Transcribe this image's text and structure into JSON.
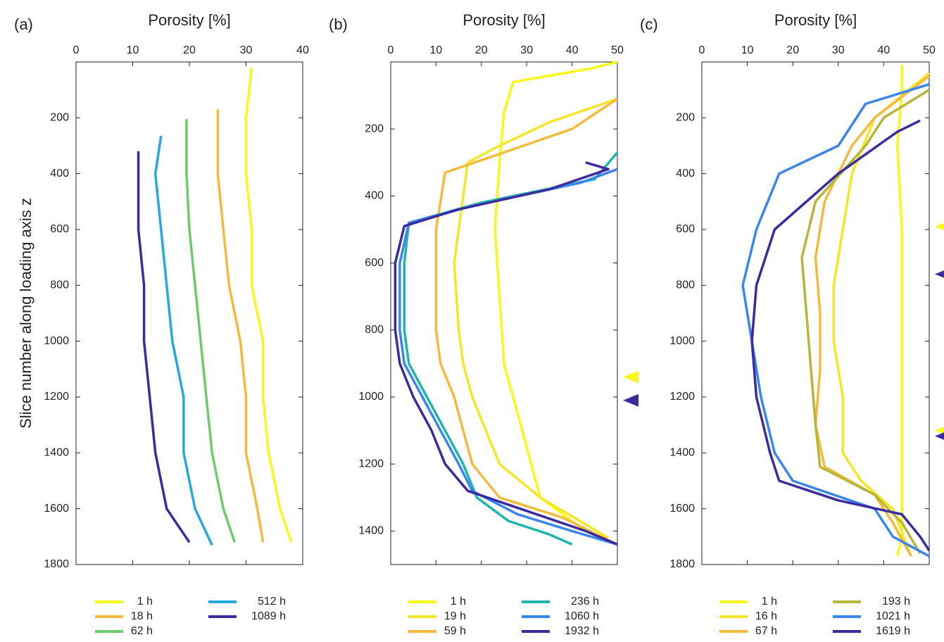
{
  "chart_data": [
    {
      "type": "line",
      "label": "(a)",
      "x_label": "Porosity [%]",
      "y_label": "Slice number along loading axis z",
      "xlim": [
        0,
        40
      ],
      "xticks": [
        0,
        10,
        20,
        30,
        40
      ],
      "ylim": [
        0,
        1800
      ],
      "yticks": [
        200,
        400,
        600,
        800,
        1000,
        1200,
        1400,
        1600,
        1800
      ],
      "y_inverted": true,
      "series": [
        {
          "name": "1 h",
          "color": "#f8f81c",
          "z": [
            20,
            200,
            400,
            600,
            800,
            1000,
            1200,
            1400,
            1600,
            1720
          ],
          "values": [
            31,
            30,
            30,
            31,
            31,
            33,
            33,
            34,
            36,
            38
          ]
        },
        {
          "name": "18 h",
          "color": "#f4ba3c",
          "z": [
            170,
            400,
            600,
            800,
            1000,
            1200,
            1400,
            1600,
            1720
          ],
          "values": [
            25,
            25,
            26,
            27,
            29,
            30,
            30,
            32,
            33
          ]
        },
        {
          "name": "62 h",
          "color": "#6ccb6b",
          "z": [
            205,
            400,
            600,
            800,
            1000,
            1200,
            1400,
            1600,
            1720
          ],
          "values": [
            19.5,
            19.5,
            20,
            21,
            22,
            23,
            24,
            26,
            28
          ]
        },
        {
          "name": "512 h",
          "color": "#27a8dc",
          "z": [
            265,
            400,
            600,
            800,
            1000,
            1200,
            1400,
            1600,
            1730
          ],
          "values": [
            15,
            14,
            15,
            16,
            17,
            19,
            19,
            21,
            24
          ]
        },
        {
          "name": "1089 h",
          "color": "#3b2b9c",
          "z": [
            320,
            400,
            600,
            800,
            1000,
            1200,
            1400,
            1600,
            1720
          ],
          "values": [
            11,
            11,
            11,
            12,
            12,
            13,
            14,
            16,
            20
          ]
        }
      ],
      "arrows": []
    },
    {
      "type": "line",
      "label": "(b)",
      "x_label": "Porosity [%]",
      "xlim": [
        0,
        50
      ],
      "xticks": [
        0,
        10,
        20,
        30,
        40,
        50
      ],
      "ylim": [
        0,
        1500
      ],
      "yticks": [
        200,
        400,
        600,
        800,
        1000,
        1200,
        1400
      ],
      "y_inverted": true,
      "series": [
        {
          "name": "1 h",
          "color": "#f8f81c",
          "z": [
            0,
            20,
            60,
            150,
            300,
            500,
            700,
            900,
            1000,
            1100,
            1200,
            1300,
            1400,
            1440
          ],
          "values": [
            50,
            44,
            27,
            25,
            24,
            23,
            24,
            25,
            27,
            29,
            31,
            33,
            43,
            50
          ]
        },
        {
          "name": "19 h",
          "color": "#f5e62a",
          "z": [
            110,
            180,
            250,
            300,
            400,
            600,
            800,
            900,
            1000,
            1100,
            1200,
            1300,
            1420
          ],
          "values": [
            50,
            35,
            24,
            17,
            16,
            14,
            15,
            16,
            18,
            21,
            24,
            33,
            48
          ]
        },
        {
          "name": "59 h",
          "color": "#f4ba3c",
          "z": [
            110,
            200,
            270,
            330,
            500,
            700,
            800,
            900,
            1000,
            1100,
            1200,
            1300,
            1360,
            1440
          ],
          "values": [
            50,
            40,
            25,
            12,
            10,
            10,
            10,
            11,
            14,
            16,
            18,
            24,
            38,
            50
          ]
        },
        {
          "name": "236 h",
          "color": "#20b5ac",
          "z": [
            270,
            350,
            420,
            480,
            600,
            800,
            900,
            1000,
            1100,
            1200,
            1300,
            1370,
            1410,
            1440
          ],
          "values": [
            50,
            45,
            20,
            4,
            3,
            3,
            4,
            8,
            12,
            16,
            19,
            26,
            35,
            40
          ]
        },
        {
          "name": "1060 h",
          "color": "#3a86ee",
          "z": [
            320,
            360,
            430,
            480,
            600,
            800,
            900,
            1000,
            1100,
            1200,
            1280,
            1350,
            1400,
            1440
          ],
          "values": [
            50,
            42,
            18,
            4,
            2,
            2,
            3,
            7,
            11,
            15,
            18,
            28,
            40,
            50
          ]
        },
        {
          "name": "1932 h",
          "color": "#3b2b9c",
          "z": [
            300,
            320,
            380,
            440,
            490,
            600,
            800,
            900,
            1000,
            1100,
            1200,
            1280,
            1340,
            1400,
            1440
          ],
          "values": [
            43,
            48,
            35,
            15,
            3,
            1,
            1,
            2,
            5,
            9,
            12,
            17,
            30,
            43,
            50
          ]
        }
      ],
      "arrows": [
        {
          "value": 940,
          "color": "#f8f81c"
        },
        {
          "value": 1010,
          "color": "#3b2b9c"
        }
      ]
    },
    {
      "type": "line",
      "label": "(c)",
      "x_label": "Porosity [%]",
      "xlim": [
        0,
        50
      ],
      "xticks": [
        0,
        10,
        20,
        30,
        40,
        50
      ],
      "ylim": [
        0,
        1800
      ],
      "yticks": [
        200,
        400,
        600,
        800,
        1000,
        1200,
        1400,
        1600,
        1800
      ],
      "y_inverted": true,
      "series": [
        {
          "name": "1 h",
          "color": "#f8f81c",
          "z": [
            10,
            100,
            300,
            600,
            900,
            1200,
            1500,
            1700,
            1770
          ],
          "values": [
            44,
            44,
            43,
            44,
            44,
            44,
            44,
            44,
            43
          ]
        },
        {
          "name": "16 h",
          "color": "#f5e62a",
          "z": [
            40,
            200,
            400,
            600,
            800,
            1000,
            1200,
            1400,
            1500,
            1600,
            1770
          ],
          "values": [
            50,
            38,
            33,
            31,
            29,
            29,
            31,
            31,
            35,
            42,
            46
          ]
        },
        {
          "name": "67 h",
          "color": "#f4ba3c",
          "z": [
            50,
            200,
            300,
            500,
            700,
            900,
            1100,
            1300,
            1450,
            1550,
            1650,
            1770
          ],
          "values": [
            50,
            38,
            33,
            27,
            25,
            26,
            26,
            25,
            27,
            38,
            42,
            46
          ]
        },
        {
          "name": "193 h",
          "color": "#b8b63a",
          "z": [
            100,
            200,
            300,
            500,
            700,
            900,
            1100,
            1300,
            1450,
            1550,
            1650,
            1760
          ],
          "values": [
            50,
            40,
            36,
            25,
            22,
            23,
            24,
            25,
            26,
            38,
            44,
            48
          ]
        },
        {
          "name": "1021 h",
          "color": "#3a86ee",
          "z": [
            80,
            150,
            300,
            400,
            600,
            800,
            1000,
            1200,
            1400,
            1500,
            1600,
            1700,
            1770
          ],
          "values": [
            50,
            36,
            30,
            17,
            12,
            9,
            11,
            13,
            16,
            20,
            38,
            42,
            50
          ]
        },
        {
          "name": "1619 h",
          "color": "#3b2b9c",
          "z": [
            210,
            250,
            400,
            600,
            800,
            1000,
            1200,
            1400,
            1500,
            1570,
            1620,
            1700,
            1750
          ],
          "values": [
            48,
            43,
            30,
            16,
            12,
            11,
            12,
            15,
            17,
            30,
            44,
            48,
            50
          ]
        }
      ],
      "arrows": [
        {
          "value": 590,
          "color": "#f8f81c"
        },
        {
          "value": 760,
          "color": "#3b2b9c"
        },
        {
          "value": 1320,
          "color": "#f8f81c"
        },
        {
          "value": 1340,
          "color": "#3b2b9c"
        }
      ]
    }
  ]
}
